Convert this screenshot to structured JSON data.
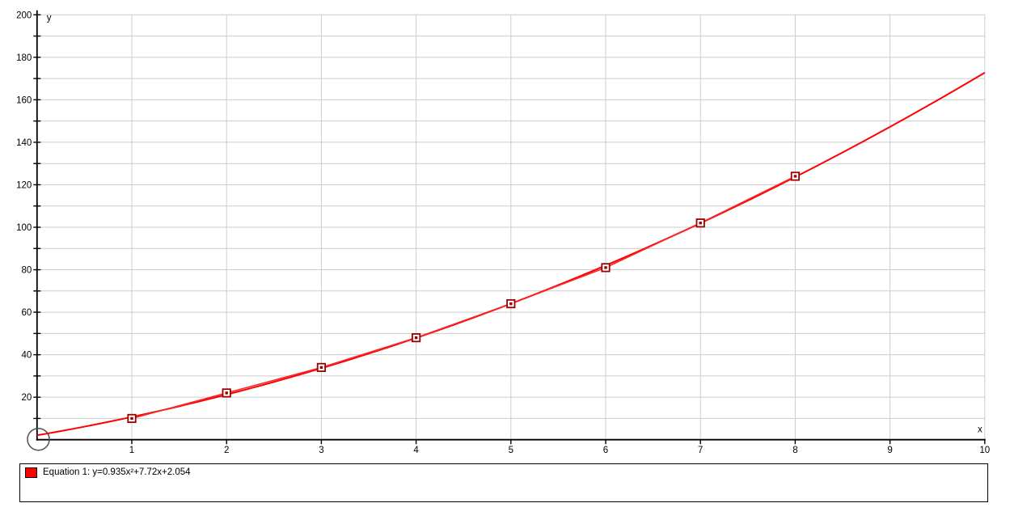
{
  "window": {
    "background_color": "#ffffff"
  },
  "chart_data": {
    "type": "scatter",
    "title": "",
    "xlabel": "x",
    "ylabel": "y",
    "xlim": [
      0,
      10
    ],
    "ylim": [
      0,
      200
    ],
    "grid": true,
    "x_grid_step": 1,
    "y_grid_step": 10,
    "x_ticks": [
      1,
      2,
      3,
      4,
      5,
      6,
      7,
      8,
      9,
      10
    ],
    "y_minor_tick_step": 10,
    "y_labeled_ticks": [
      20,
      40,
      60,
      80,
      100,
      120,
      140,
      160,
      180,
      200
    ],
    "series": [
      {
        "name": "data-points",
        "type": "points-with-line",
        "marker": "square",
        "x": [
          1,
          2,
          3,
          4,
          5,
          6,
          7,
          8
        ],
        "y": [
          10,
          22,
          34,
          48,
          64,
          81,
          102,
          124
        ],
        "line_color": "#f32b2b",
        "marker_color": "#990000"
      },
      {
        "name": "equation-1-trendline",
        "type": "quadratic-function",
        "equation": "y=0.935x²+7.72x+2.054",
        "coefficients": {
          "a": 0.935,
          "b": 7.72,
          "c": 2.054
        },
        "x_range": [
          0,
          10
        ],
        "color": "#ff0000"
      }
    ],
    "origin_marker": {
      "shape": "circle",
      "x": 0,
      "y": 0
    }
  },
  "legend": {
    "position": "bottom",
    "items": [
      {
        "color": "#ff0000",
        "label": "Equation 1: y=0.935x²+7.72x+2.054"
      }
    ]
  },
  "colors": {
    "background": "#ffffff",
    "gridline": "#cccccc",
    "axis": "#000000",
    "tick_label": "#000000",
    "curve": "#ff0000",
    "series_line": "#f32b2b",
    "marker": "#990000",
    "origin_circle": "#4d4d4d"
  }
}
